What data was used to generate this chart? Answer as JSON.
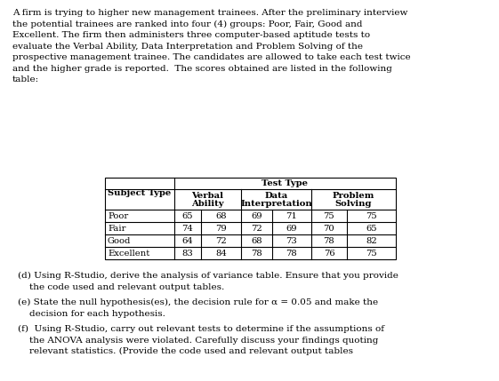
{
  "background_color": "#ffffff",
  "paragraph_text": "A firm is trying to higher new management trainees. After the preliminary interview\nthe potential trainees are ranked into four (4) groups: Poor, Fair, Good and\nExcellent. The firm then administers three computer-based aptitude tests to\nevaluate the Verbal Ability, Data Interpretation and Problem Solving of the\nprospective management trainee. The candidates are allowed to take each test twice\nand the higher grade is reported.  The scores obtained are listed in the following\ntable:",
  "rows": [
    [
      "Poor",
      "65",
      "68",
      "69",
      "71",
      "75",
      "75"
    ],
    [
      "Fair",
      "74",
      "79",
      "72",
      "69",
      "70",
      "65"
    ],
    [
      "Good",
      "64",
      "72",
      "68",
      "73",
      "78",
      "82"
    ],
    [
      "Excellent",
      "83",
      "84",
      "78",
      "78",
      "76",
      "75"
    ]
  ],
  "items_d": "(d) Using R-Studio, derive the analysis of variance table. Ensure that you provide\n    the code used and relevant output tables.",
  "items_e": "(e) State the null hypothesis(es), the decision rule for α = 0.05 and make the\n    decision for each hypothesis.",
  "items_f": "(f)  Using R-Studio, carry out relevant tests to determine if the assumptions of\n    the ANOVA analysis were violated. Carefully discuss your findings quoting\n    relevant statistics. (Provide the code used and relevant output tables",
  "font_size_body": 7.5,
  "font_size_table": 7.2,
  "fig_width": 5.61,
  "fig_height": 4.29,
  "dpi": 100
}
